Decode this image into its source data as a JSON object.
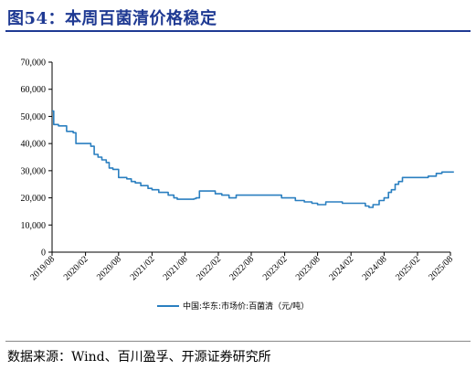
{
  "figure": {
    "title": "图54：本周百菌清价格稳定",
    "source": "数据来源：Wind、百川盈孚、开源证券研究所"
  },
  "colors": {
    "series": "#2a7fc0",
    "title": "#1f3a93",
    "axis": "#000000"
  },
  "chart_data": {
    "type": "line",
    "title": "",
    "xlabel": "",
    "ylabel": "",
    "ylim": [
      0,
      70000
    ],
    "yticks": [
      0,
      10000,
      20000,
      30000,
      40000,
      50000,
      60000,
      70000
    ],
    "ytick_labels": [
      "0",
      "10,000",
      "20,000",
      "30,000",
      "40,000",
      "50,000",
      "60,000",
      "70,000"
    ],
    "xlim": [
      "2019-08",
      "2025-08"
    ],
    "xtick_labels": [
      "2019/08",
      "2020/02",
      "2020/08",
      "2021/02",
      "2021/08",
      "2022/02",
      "2022/08",
      "2023/02",
      "2023/08",
      "2024/02",
      "2024/08",
      "2025/02",
      "2025/08"
    ],
    "legend_position": "bottom",
    "grid": false,
    "series": [
      {
        "name": "中国:华东:市场价:百菌清（元/吨）",
        "points": [
          [
            "2019-08-01",
            52000
          ],
          [
            "2019-08-10",
            47000
          ],
          [
            "2019-09-05",
            46500
          ],
          [
            "2019-10-20",
            44500
          ],
          [
            "2019-11-25",
            44000
          ],
          [
            "2019-12-10",
            40000
          ],
          [
            "2020-03-01",
            39000
          ],
          [
            "2020-03-20",
            36000
          ],
          [
            "2020-04-10",
            35000
          ],
          [
            "2020-05-01",
            34000
          ],
          [
            "2020-05-25",
            33000
          ],
          [
            "2020-06-10",
            31000
          ],
          [
            "2020-07-01",
            30500
          ],
          [
            "2020-08-01",
            27500
          ],
          [
            "2020-09-15",
            27000
          ],
          [
            "2020-10-10",
            26000
          ],
          [
            "2020-11-01",
            25500
          ],
          [
            "2020-12-01",
            24500
          ],
          [
            "2021-01-10",
            23500
          ],
          [
            "2021-02-01",
            23000
          ],
          [
            "2021-03-10",
            22000
          ],
          [
            "2021-05-01",
            21000
          ],
          [
            "2021-06-01",
            20000
          ],
          [
            "2021-06-20",
            19500
          ],
          [
            "2021-09-01",
            19500
          ],
          [
            "2021-09-20",
            19700
          ],
          [
            "2021-10-01",
            20000
          ],
          [
            "2021-10-20",
            22500
          ],
          [
            "2022-01-15",
            21500
          ],
          [
            "2022-02-20",
            21000
          ],
          [
            "2022-04-01",
            20000
          ],
          [
            "2022-05-10",
            21000
          ],
          [
            "2023-01-15",
            20000
          ],
          [
            "2023-04-01",
            19000
          ],
          [
            "2023-05-20",
            18500
          ],
          [
            "2023-07-01",
            18000
          ],
          [
            "2023-08-01",
            17500
          ],
          [
            "2023-09-15",
            18500
          ],
          [
            "2023-12-15",
            18000
          ],
          [
            "2024-04-20",
            17000
          ],
          [
            "2024-05-10",
            16500
          ],
          [
            "2024-06-01",
            17500
          ],
          [
            "2024-07-05",
            19000
          ],
          [
            "2024-08-01",
            20000
          ],
          [
            "2024-08-25",
            22000
          ],
          [
            "2024-09-10",
            23000
          ],
          [
            "2024-10-01",
            25000
          ],
          [
            "2024-10-20",
            26000
          ],
          [
            "2024-11-10",
            27500
          ],
          [
            "2025-04-01",
            28000
          ],
          [
            "2025-05-15",
            29000
          ],
          [
            "2025-06-15",
            29500
          ],
          [
            "2025-08-20",
            29500
          ]
        ]
      }
    ]
  }
}
